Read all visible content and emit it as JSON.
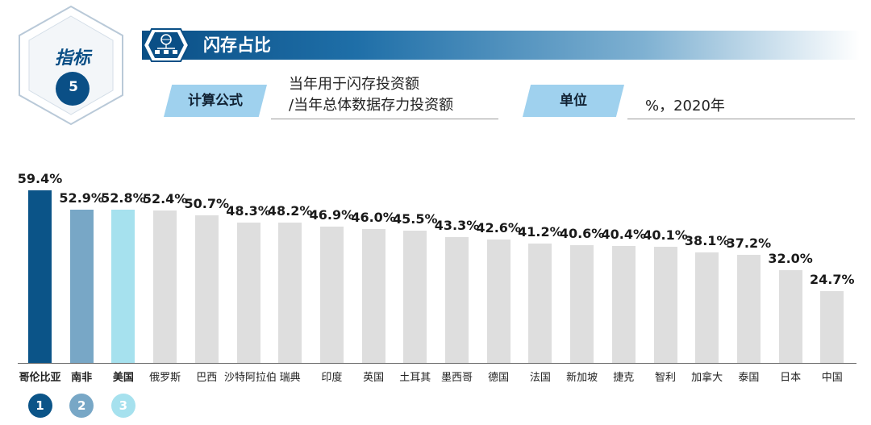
{
  "indicator": {
    "label": "指标",
    "number": "5"
  },
  "header": {
    "title": "闪存占比",
    "icon": "network-server-icon"
  },
  "formula": {
    "label": "计算公式",
    "line1": "当年用于闪存投资额",
    "line2": "/当年总体数据存力投资额"
  },
  "unit": {
    "label": "单位",
    "value": "%，2020年"
  },
  "colors": {
    "rank1": "#0b5488",
    "rank2": "#78a7c6",
    "rank3": "#a6e1ee",
    "other": "#dedede",
    "accent": "#0a4f86"
  },
  "chart_data": {
    "type": "bar",
    "categories": [
      "哥伦比亚",
      "南非",
      "美国",
      "俄罗斯",
      "巴西",
      "沙特阿拉伯",
      "瑞典",
      "印度",
      "英国",
      "土耳其",
      "墨西哥",
      "德国",
      "法国",
      "新加坡",
      "捷克",
      "智利",
      "加拿大",
      "泰国",
      "日本",
      "中国"
    ],
    "values": [
      59.4,
      52.9,
      52.8,
      52.4,
      50.7,
      48.3,
      48.2,
      46.9,
      46.0,
      45.5,
      43.3,
      42.6,
      41.2,
      40.6,
      40.4,
      40.1,
      38.1,
      37.2,
      32.0,
      24.7
    ],
    "value_labels": [
      "59.4%",
      "52.9%",
      "52.8%",
      "52.4%",
      "50.7%",
      "48.3%",
      "48.2%",
      "46.9%",
      "46.0%",
      "45.5%",
      "43.3%",
      "42.6%",
      "41.2%",
      "40.6%",
      "40.4%",
      "40.1%",
      "38.1%",
      "37.2%",
      "32.0%",
      "24.7%"
    ],
    "ylim": [
      0,
      60
    ],
    "grid": false,
    "rank_badges": [
      "1",
      "2",
      "3"
    ]
  }
}
